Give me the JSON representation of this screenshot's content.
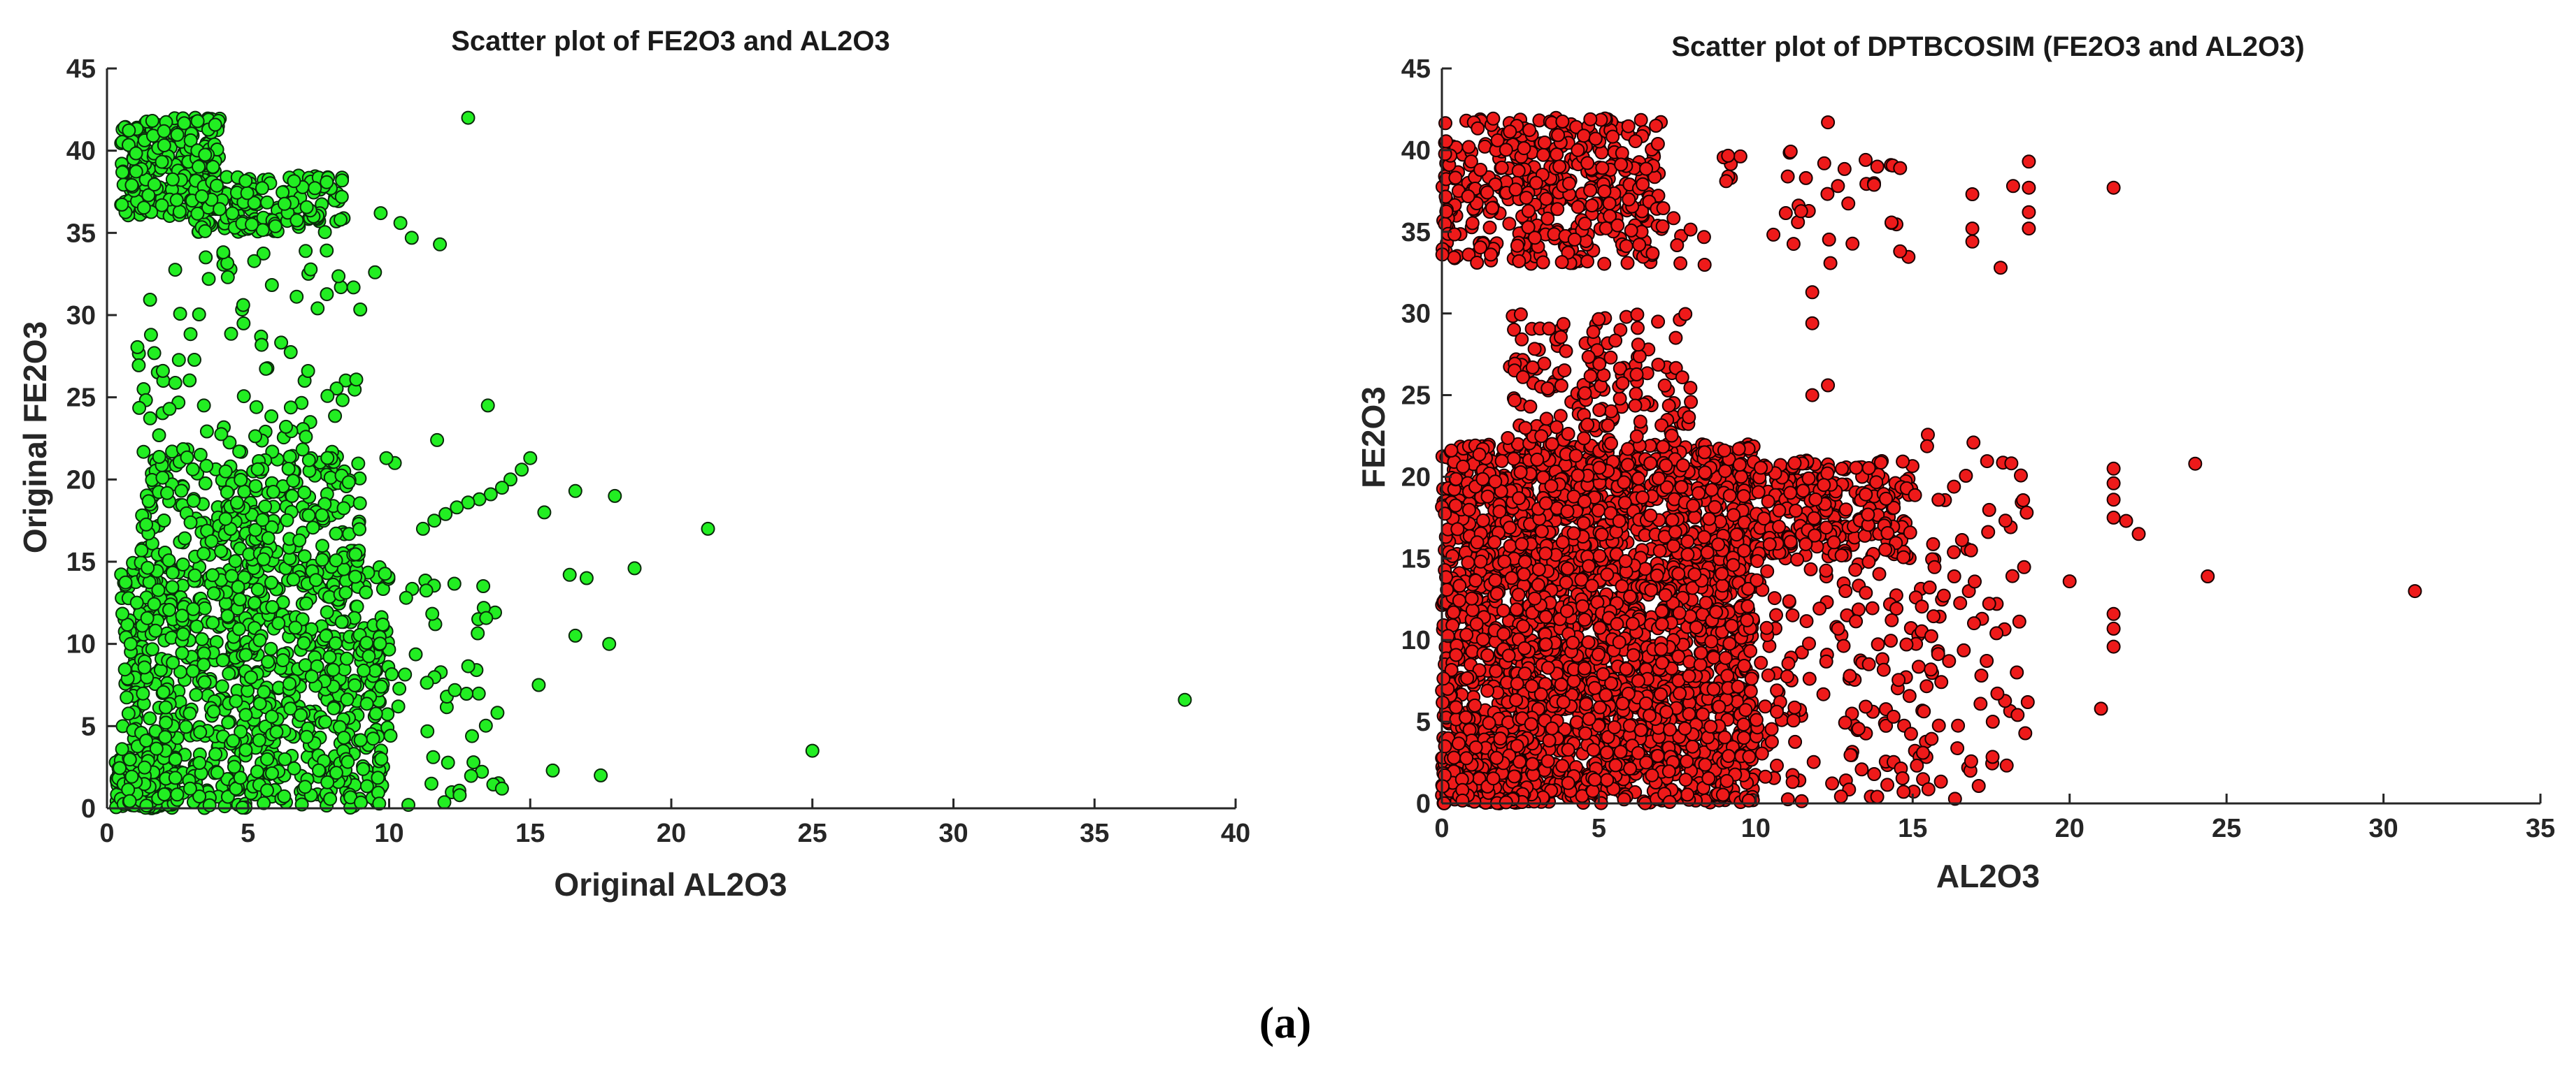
{
  "panel_label": "(a)",
  "chart_data": [
    {
      "type": "scatter",
      "title": "Scatter plot of FE2O3 and AL2O3",
      "xlabel": "Original AL2O3",
      "ylabel": "Original FE2O3",
      "xlim": [
        0,
        40
      ],
      "ylim": [
        0,
        45
      ],
      "xticks": [
        0,
        5,
        10,
        15,
        20,
        25,
        30,
        35,
        40
      ],
      "yticks": [
        0,
        5,
        10,
        15,
        20,
        25,
        30,
        35,
        40,
        45
      ],
      "grid": false,
      "marker_color": "#22ee22",
      "marker_edge": "#0a2a0a",
      "clusters": [
        {
          "x": [
            0.3,
            2.5
          ],
          "y": [
            0,
            3
          ],
          "n": 220
        },
        {
          "x": [
            0.5,
            10
          ],
          "y": [
            0,
            15
          ],
          "n": 900
        },
        {
          "x": [
            1.2,
            9
          ],
          "y": [
            15,
            22
          ],
          "n": 260
        },
        {
          "x": [
            1,
            9
          ],
          "y": [
            22,
            34
          ],
          "n": 85
        },
        {
          "x": [
            0.5,
            4
          ],
          "y": [
            36,
            42
          ],
          "n": 260
        },
        {
          "x": [
            3,
            8.5
          ],
          "y": [
            35,
            38.5
          ],
          "n": 150
        },
        {
          "x": [
            10,
            14
          ],
          "y": [
            0,
            14
          ],
          "n": 45
        }
      ],
      "points": [
        {
          "x": 12.8,
          "y": 42
        },
        {
          "x": 38.2,
          "y": 6.6
        },
        {
          "x": 25,
          "y": 3.5
        },
        {
          "x": 21.3,
          "y": 17
        },
        {
          "x": 18.7,
          "y": 14.6
        },
        {
          "x": 18,
          "y": 19
        },
        {
          "x": 17.8,
          "y": 10
        },
        {
          "x": 17.5,
          "y": 2
        },
        {
          "x": 17,
          "y": 14
        },
        {
          "x": 16.6,
          "y": 19.3
        },
        {
          "x": 16.6,
          "y": 10.5
        },
        {
          "x": 16.4,
          "y": 14.2
        },
        {
          "x": 15.8,
          "y": 2.3
        },
        {
          "x": 15.5,
          "y": 18
        },
        {
          "x": 15.3,
          "y": 7.5
        },
        {
          "x": 15,
          "y": 21.3
        },
        {
          "x": 14.7,
          "y": 20.6
        },
        {
          "x": 14.3,
          "y": 20
        },
        {
          "x": 14,
          "y": 19.5
        },
        {
          "x": 13.6,
          "y": 19.1
        },
        {
          "x": 13.2,
          "y": 18.8
        },
        {
          "x": 12.8,
          "y": 18.6
        },
        {
          "x": 12.4,
          "y": 18.3
        },
        {
          "x": 12,
          "y": 17.9
        },
        {
          "x": 11.6,
          "y": 17.5
        },
        {
          "x": 11.2,
          "y": 17
        },
        {
          "x": 13.5,
          "y": 24.5
        },
        {
          "x": 11.7,
          "y": 22.4
        },
        {
          "x": 10.8,
          "y": 34.7
        },
        {
          "x": 11.8,
          "y": 34.3
        },
        {
          "x": 10.4,
          "y": 35.6
        },
        {
          "x": 9.7,
          "y": 36.2
        },
        {
          "x": 9.5,
          "y": 32.6
        },
        {
          "x": 10.2,
          "y": 21
        },
        {
          "x": 9.9,
          "y": 21.3
        },
        {
          "x": 12.5,
          "y": 0.8
        },
        {
          "x": 14,
          "y": 1.2
        },
        {
          "x": 11.5,
          "y": 1.5
        }
      ]
    },
    {
      "type": "scatter",
      "title": "Scatter plot of DPTBCOSIM (FE2O3 and AL2O3)",
      "xlabel": "AL2O3",
      "ylabel": "FE2O3",
      "xlim": [
        0,
        35
      ],
      "ylim": [
        0,
        45
      ],
      "xticks": [
        0,
        5,
        10,
        15,
        20,
        25,
        30,
        35
      ],
      "yticks": [
        0,
        5,
        10,
        15,
        20,
        25,
        30,
        35,
        40,
        45
      ],
      "grid": false,
      "marker_color": "#ee1a1a",
      "marker_edge": "#1a0000",
      "clusters": [
        {
          "x": [
            0,
            10
          ],
          "y": [
            0,
            22
          ],
          "n": 2600
        },
        {
          "x": [
            0,
            3
          ],
          "y": [
            0,
            4
          ],
          "n": 200
        },
        {
          "x": [
            10,
            15
          ],
          "y": [
            15,
            21
          ],
          "n": 260
        },
        {
          "x": [
            10,
            16
          ],
          "y": [
            0,
            15
          ],
          "n": 160
        },
        {
          "x": [
            0,
            7
          ],
          "y": [
            33,
            42
          ],
          "n": 430
        },
        {
          "x": [
            2,
            8
          ],
          "y": [
            22,
            30
          ],
          "n": 160
        },
        {
          "x": [
            7,
            15
          ],
          "y": [
            32,
            40
          ],
          "n": 45
        },
        {
          "x": [
            15,
            18.7
          ],
          "y": [
            0,
            23
          ],
          "n": 70
        }
      ],
      "points": [
        {
          "x": 31,
          "y": 13
        },
        {
          "x": 24.4,
          "y": 13.9
        },
        {
          "x": 24,
          "y": 20.8
        },
        {
          "x": 22.2,
          "y": 16.5
        },
        {
          "x": 21.8,
          "y": 17.3
        },
        {
          "x": 21.4,
          "y": 37.7
        },
        {
          "x": 21.4,
          "y": 20.5
        },
        {
          "x": 21.4,
          "y": 19.6
        },
        {
          "x": 21.4,
          "y": 18.6
        },
        {
          "x": 21.4,
          "y": 17.5
        },
        {
          "x": 21.4,
          "y": 11.6
        },
        {
          "x": 21.4,
          "y": 10.7
        },
        {
          "x": 21.4,
          "y": 9.6
        },
        {
          "x": 21,
          "y": 5.8
        },
        {
          "x": 20,
          "y": 13.6
        },
        {
          "x": 18.7,
          "y": 39.3
        },
        {
          "x": 18.7,
          "y": 37.7
        },
        {
          "x": 18.7,
          "y": 36.2
        },
        {
          "x": 18.7,
          "y": 35.2
        },
        {
          "x": 18.2,
          "y": 37.8
        },
        {
          "x": 17.8,
          "y": 32.8
        },
        {
          "x": 16.9,
          "y": 35.2
        },
        {
          "x": 16.9,
          "y": 34.4
        },
        {
          "x": 16.9,
          "y": 37.3
        },
        {
          "x": 12.3,
          "y": 41.7
        },
        {
          "x": 13.5,
          "y": 39.4
        },
        {
          "x": 14.6,
          "y": 38.9
        },
        {
          "x": 14.6,
          "y": 33.8
        },
        {
          "x": 11.8,
          "y": 25
        },
        {
          "x": 12.3,
          "y": 25.6
        },
        {
          "x": 11.8,
          "y": 29.4
        },
        {
          "x": 11.8,
          "y": 31.3
        }
      ]
    }
  ]
}
